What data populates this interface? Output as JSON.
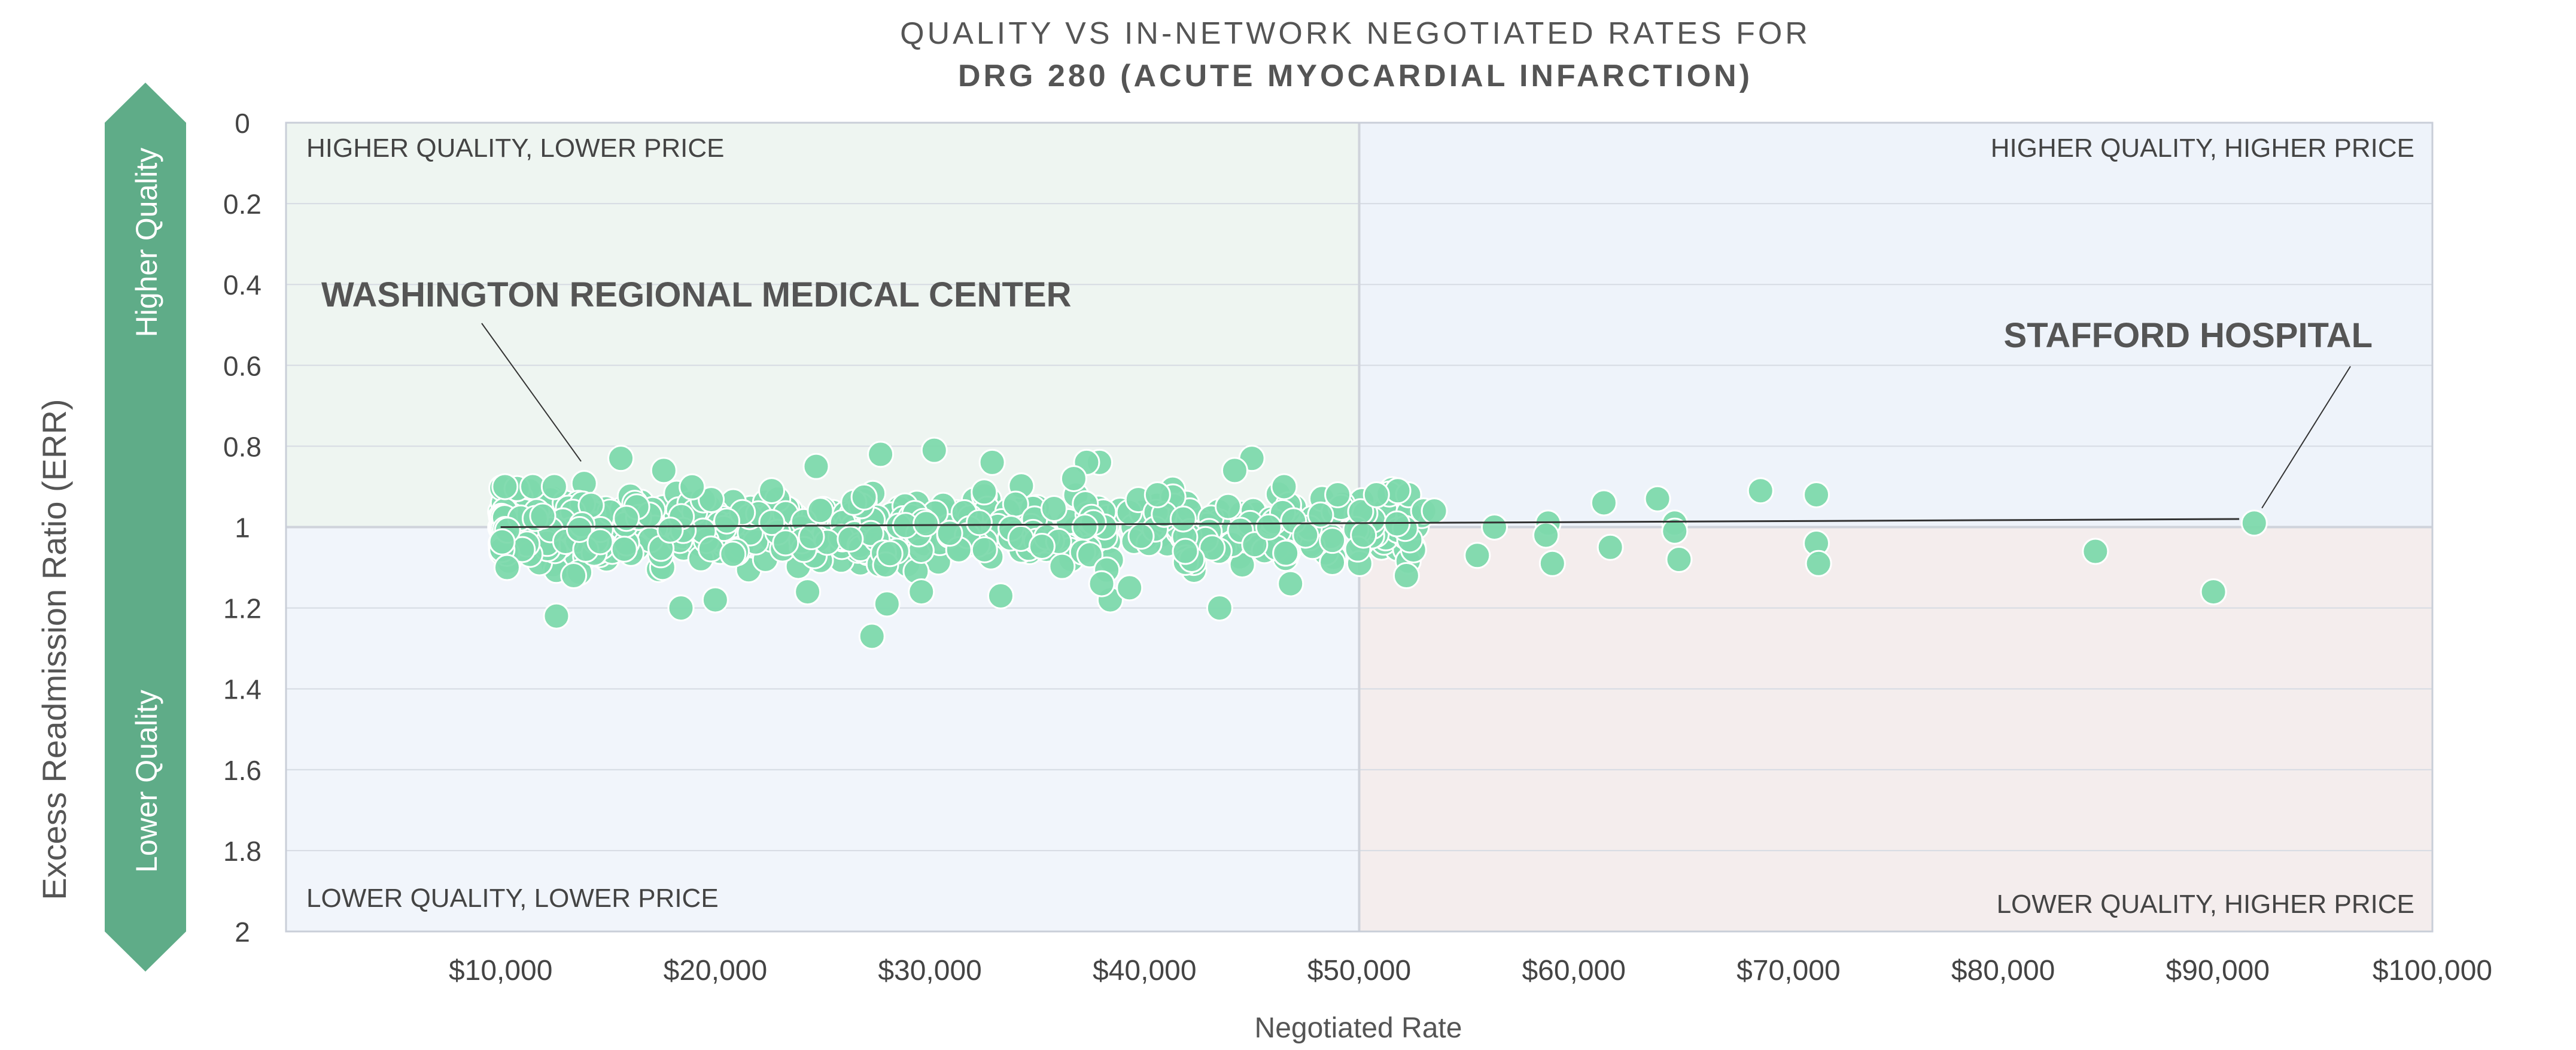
{
  "chart_data": {
    "type": "scatter",
    "title": "QUALITY VS IN-NETWORK NEGOTIATED RATES FOR",
    "subtitle": "DRG 280 (ACUTE MYOCARDIAL INFARCTION)",
    "xlabel": "Negotiated Rate",
    "ylabel": "Excess Readmission Ratio (ERR)",
    "xlim": [
      0,
      100000
    ],
    "ylim": [
      0,
      2
    ],
    "y_inverted": true,
    "x_ticks": [
      10000,
      20000,
      30000,
      40000,
      50000,
      60000,
      70000,
      80000,
      90000,
      100000
    ],
    "x_tick_labels": [
      "$10,000",
      "$20,000",
      "$30,000",
      "$40,000",
      "$50,000",
      "$60,000",
      "$70,000",
      "$80,000",
      "$90,000",
      "$100,000"
    ],
    "y_ticks": [
      0,
      0.2,
      0.4,
      0.6,
      0.8,
      1,
      1.2,
      1.4,
      1.6,
      1.8,
      2
    ],
    "y_tick_labels": [
      "0",
      "0.2",
      "0.4",
      "0.6",
      "0.8",
      "1",
      "1.2",
      "1.4",
      "1.6",
      "1.8",
      "2"
    ],
    "grid": true,
    "quadrant_split": {
      "x": 50000,
      "y": 1
    },
    "quadrants": {
      "top_left": "HIGHER QUALITY, LOWER PRICE",
      "top_right": "HIGHER QUALITY, HIGHER PRICE",
      "bottom_left": "LOWER QUALITY, LOWER PRICE",
      "bottom_right": "LOWER QUALITY, HIGHER PRICE"
    },
    "quality_arrow": {
      "top": "Higher Quality",
      "bottom": "Lower Quality"
    },
    "trend_line": {
      "x": [
        10000,
        91000
      ],
      "y": [
        1.0,
        0.98
      ]
    },
    "annotations": [
      {
        "text": "WASHINGTON REGIONAL MEDICAL CENTER",
        "x": 15000,
        "y": 0.83
      },
      {
        "text": "STAFFORD HOSPITAL",
        "x": 91500,
        "y": 0.99
      }
    ],
    "points": [
      [
        55500,
        1.07
      ],
      [
        56300,
        1.0
      ],
      [
        58800,
        0.99
      ],
      [
        58700,
        1.02
      ],
      [
        59000,
        1.09
      ],
      [
        61400,
        0.94
      ],
      [
        61700,
        1.05
      ],
      [
        63900,
        0.93
      ],
      [
        64700,
        0.99
      ],
      [
        64700,
        1.01
      ],
      [
        64900,
        1.08
      ],
      [
        68700,
        0.91
      ],
      [
        71300,
        0.92
      ],
      [
        71300,
        1.04
      ],
      [
        71400,
        1.09
      ],
      [
        84300,
        1.06
      ],
      [
        89800,
        1.16
      ],
      [
        91700,
        0.99
      ],
      [
        52300,
        0.92
      ],
      [
        53000,
        0.96
      ],
      [
        53500,
        0.96
      ],
      [
        52200,
        1.12
      ],
      [
        51800,
        0.91
      ],
      [
        50800,
        0.92
      ],
      [
        50200,
        1.02
      ],
      [
        49000,
        0.92
      ],
      [
        48200,
        0.97
      ],
      [
        47500,
        1.02
      ],
      [
        46500,
        0.9
      ],
      [
        46800,
        1.14
      ],
      [
        45000,
        0.83
      ],
      [
        44200,
        0.86
      ],
      [
        43500,
        1.2
      ],
      [
        42200,
        1.08
      ],
      [
        41900,
        1.06
      ],
      [
        41800,
        0.98
      ],
      [
        40600,
        0.92
      ],
      [
        38400,
        1.18
      ],
      [
        37900,
        0.84
      ],
      [
        37300,
        0.84
      ],
      [
        38000,
        1.14
      ],
      [
        36700,
        0.88
      ],
      [
        39300,
        1.15
      ],
      [
        32900,
        0.84
      ],
      [
        33300,
        1.17
      ],
      [
        30200,
        0.81
      ],
      [
        29600,
        1.16
      ],
      [
        27700,
        0.82
      ],
      [
        28000,
        1.19
      ],
      [
        27300,
        1.27
      ],
      [
        24700,
        0.85
      ],
      [
        24300,
        1.16
      ],
      [
        20000,
        1.18
      ],
      [
        18400,
        1.2
      ],
      [
        17600,
        0.86
      ],
      [
        15600,
        0.83
      ],
      [
        12600,
        1.22
      ],
      [
        13400,
        1.12
      ],
      [
        10200,
        0.9
      ],
      [
        10300,
        1.1
      ],
      [
        11500,
        0.9
      ],
      [
        12500,
        0.9
      ]
    ],
    "cluster": {
      "x_range": [
        10000,
        53000
      ],
      "y_range": [
        0.88,
        1.14
      ],
      "count": 620
    }
  }
}
